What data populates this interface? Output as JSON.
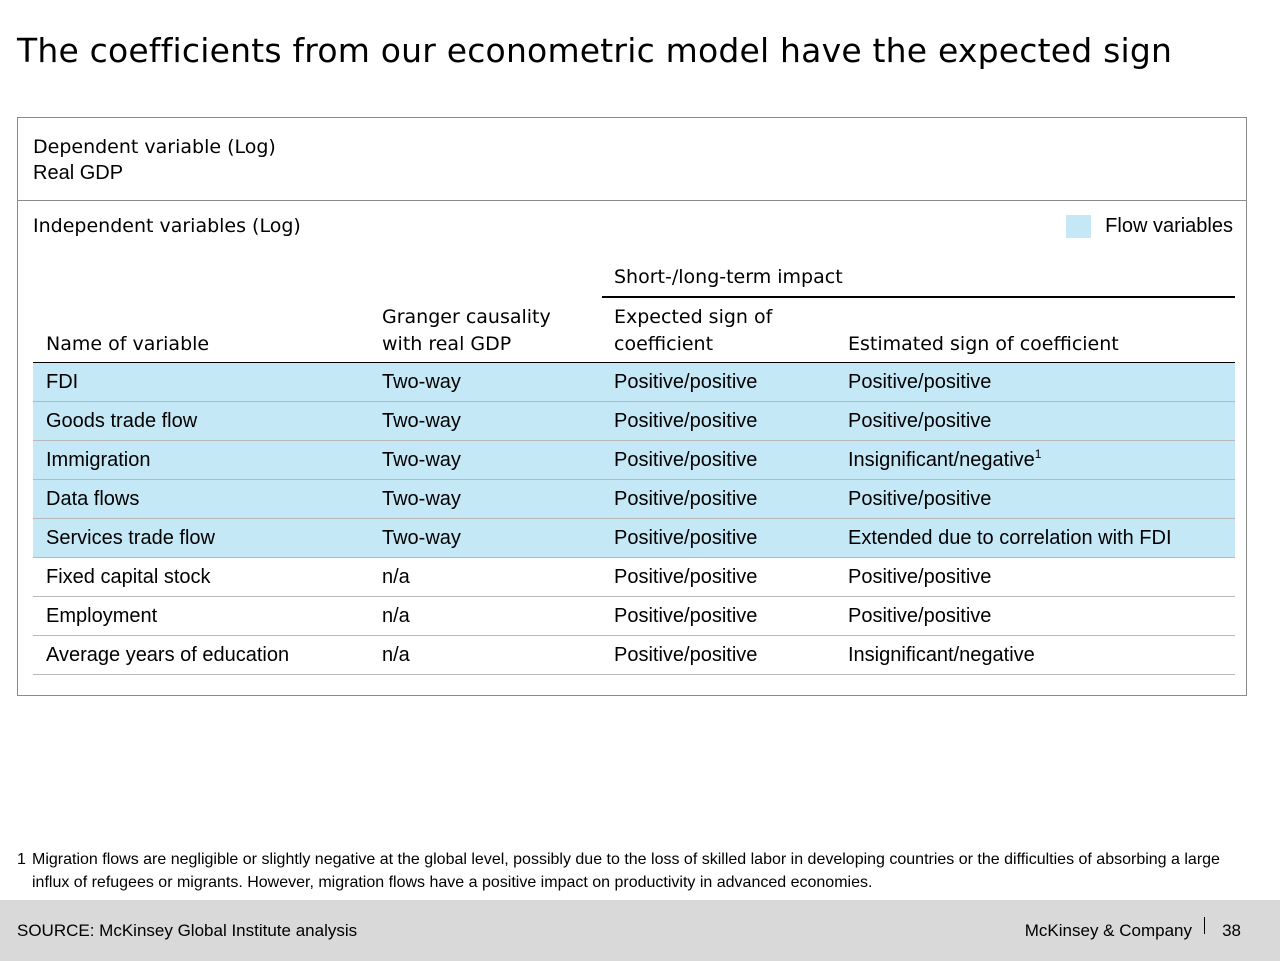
{
  "title": "The coefficients from our econometric model have the expected sign",
  "dependent": {
    "label": "Dependent variable (Log)",
    "value": "Real GDP"
  },
  "independent_label": "Independent variables (Log)",
  "legend": {
    "label": "Flow variables",
    "color": "#c5e8f7"
  },
  "group_header": "Short-/long-term impact",
  "columns": {
    "name": "Name of variable",
    "granger_line1": "Granger causality",
    "granger_line2": "with real GDP",
    "expected_line1": "Expected sign of",
    "expected_line2": "coefficient",
    "estimated": "Estimated sign of coefficient"
  },
  "rows": [
    {
      "name": "FDI",
      "granger": "Two-way",
      "expected": "Positive/positive",
      "estimated": "Positive/positive",
      "flow": true
    },
    {
      "name": "Goods trade flow",
      "granger": "Two-way",
      "expected": "Positive/positive",
      "estimated": "Positive/positive",
      "flow": true
    },
    {
      "name": "Immigration",
      "granger": "Two-way",
      "expected": "Positive/positive",
      "estimated": "Insignificant/negative",
      "footnote_ref": "1",
      "flow": true
    },
    {
      "name": "Data flows",
      "granger": "Two-way",
      "expected": "Positive/positive",
      "estimated": "Positive/positive",
      "flow": true
    },
    {
      "name": "Services trade flow",
      "granger": "Two-way",
      "expected": "Positive/positive",
      "estimated": "Extended due to correlation with FDI",
      "flow": true
    },
    {
      "name": "Fixed capital stock",
      "granger": "n/a",
      "expected": "Positive/positive",
      "estimated": "Positive/positive",
      "flow": false
    },
    {
      "name": "Employment",
      "granger": "n/a",
      "expected": "Positive/positive",
      "estimated": "Positive/positive",
      "flow": false
    },
    {
      "name": "Average years of education",
      "granger": "n/a",
      "expected": "Positive/positive",
      "estimated": "Insignificant/negative",
      "flow": false
    }
  ],
  "footnote": {
    "number": "1",
    "text": "Migration flows are negligible or slightly negative at the global level, possibly due to the loss of skilled labor in developing countries or the difficulties of absorbing a large influx of refugees or migrants. However, migration flows have a positive impact on productivity in advanced economies."
  },
  "footer": {
    "source": "SOURCE: McKinsey Global Institute analysis",
    "brand": "McKinsey & Company",
    "page": "38"
  }
}
